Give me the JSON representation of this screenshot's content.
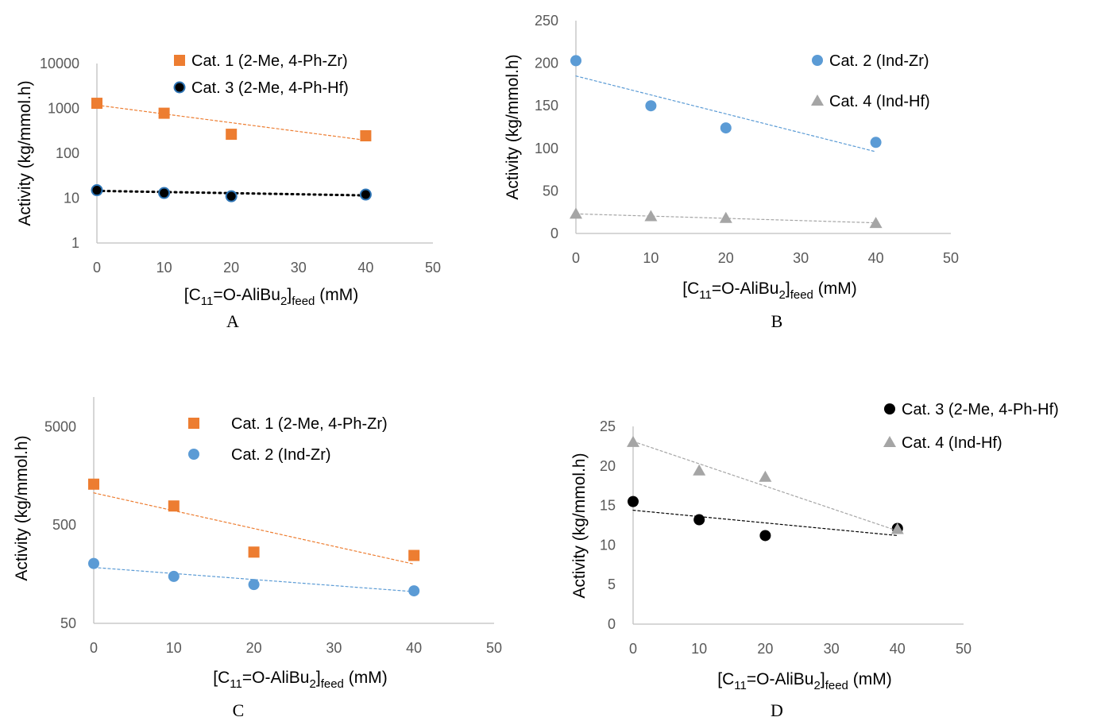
{
  "chart_data": [
    {
      "type": "scatter",
      "panel_label": "A",
      "xlabel": {
        "main": "[C",
        "sub1": "11",
        "mid": "=O-AliBu",
        "sub2": "2",
        "end": "]",
        "sub3": "feed",
        "unit": " (mM)"
      },
      "ylabel": "Activity (kg/mmol.h)",
      "yscale": "log",
      "xlim": [
        0,
        50
      ],
      "ylim": [
        1,
        10000
      ],
      "xticks": [
        0,
        10,
        20,
        30,
        40,
        50
      ],
      "yticks": [
        1,
        10,
        100,
        1000,
        10000
      ],
      "grid": false,
      "legend": "top-right",
      "series": [
        {
          "name": "Cat. 1 (2-Me, 4-Ph-Zr)",
          "marker": "square",
          "color": "#ed7d31",
          "trendline": "dashed",
          "x": [
            0,
            10,
            20,
            40
          ],
          "y": [
            1300,
            780,
            265,
            245
          ],
          "trend": [
            1180,
            195
          ]
        },
        {
          "name": "Cat. 3 (2-Me, 4-Ph-Hf)",
          "marker": "circle-outlined",
          "color": "#000000",
          "outline": "#2e75b6",
          "trendline": "dotted",
          "x": [
            0,
            10,
            20,
            40
          ],
          "y": [
            15,
            13,
            11,
            12
          ],
          "trend": [
            14.5,
            11.5
          ]
        }
      ]
    },
    {
      "type": "scatter",
      "panel_label": "B",
      "xlabel": {
        "main": "[C",
        "sub1": "11",
        "mid": "=O-AliBu",
        "sub2": "2",
        "end": "]",
        "sub3": "feed",
        "unit": " (mM)"
      },
      "ylabel": "Activity (kg/mmol.h)",
      "yscale": "linear",
      "xlim": [
        0,
        50
      ],
      "ylim": [
        0,
        250
      ],
      "xticks": [
        0,
        10,
        20,
        30,
        40,
        50
      ],
      "yticks": [
        0,
        50,
        100,
        150,
        200,
        250
      ],
      "grid": false,
      "legend": "top-right",
      "series": [
        {
          "name": "Cat. 2 (Ind-Zr)",
          "marker": "circle",
          "color": "#5b9bd5",
          "trendline": "dashed",
          "x": [
            0,
            10,
            20,
            40
          ],
          "y": [
            203,
            150,
            124,
            107
          ],
          "trend": [
            185,
            96
          ]
        },
        {
          "name": "Cat. 4 (Ind-Hf)",
          "marker": "triangle",
          "color": "#a5a5a5",
          "trendline": "dashed",
          "x": [
            0,
            10,
            20,
            40
          ],
          "y": [
            23,
            20,
            18,
            12
          ],
          "trend": [
            23,
            12.5
          ]
        }
      ]
    },
    {
      "type": "scatter",
      "panel_label": "C",
      "xlabel": {
        "main": "[C",
        "sub1": "11",
        "mid": "=O-AliBu",
        "sub2": "2",
        "end": "]",
        "sub3": "feed",
        "unit": " (mM)"
      },
      "ylabel": "Activity (kg/mmol.h)",
      "yscale": "log",
      "xlim": [
        0,
        50
      ],
      "ylim": [
        50,
        10000
      ],
      "xticks": [
        0,
        10,
        20,
        30,
        40,
        50
      ],
      "yticks": [
        50,
        500,
        5000
      ],
      "grid": false,
      "legend": "top-right",
      "series": [
        {
          "name": "Cat. 1 (2-Me, 4-Ph-Zr)",
          "marker": "square",
          "color": "#ed7d31",
          "trendline": "dashed",
          "x": [
            0,
            10,
            20,
            40
          ],
          "y": [
            1300,
            780,
            265,
            245
          ],
          "trend": [
            1060,
            200
          ]
        },
        {
          "name": "Cat. 2 (Ind-Zr)",
          "marker": "circle",
          "color": "#5b9bd5",
          "trendline": "dashed",
          "x": [
            0,
            10,
            20,
            40
          ],
          "y": [
            203,
            150,
            124,
            107
          ],
          "trend": [
            185,
            105
          ]
        }
      ]
    },
    {
      "type": "scatter",
      "panel_label": "D",
      "xlabel": {
        "main": "[C",
        "sub1": "11",
        "mid": "=O-AliBu",
        "sub2": "2",
        "end": "]",
        "sub3": "feed",
        "unit": " (mM)"
      },
      "ylabel": "Activity (kg/mmol.h)",
      "yscale": "linear",
      "xlim": [
        0,
        50
      ],
      "ylim": [
        0,
        25
      ],
      "xticks": [
        0,
        10,
        20,
        30,
        40,
        50
      ],
      "yticks": [
        0,
        5,
        10,
        15,
        20,
        25
      ],
      "grid": false,
      "legend": "top-right",
      "series": [
        {
          "name": "Cat. 3 (2-Me, 4-Ph-Hf)",
          "marker": "circle",
          "color": "#000000",
          "trendline": "dashed",
          "x": [
            0,
            10,
            20,
            40
          ],
          "y": [
            15.5,
            13.2,
            11.2,
            12.1
          ],
          "trend": [
            14.4,
            11.2
          ]
        },
        {
          "name": "Cat. 4 (Ind-Hf)",
          "marker": "triangle",
          "color": "#a5a5a5",
          "trendline": "dashed",
          "x": [
            0,
            10,
            20,
            40
          ],
          "y": [
            23,
            19.4,
            18.6,
            12
          ],
          "trend": [
            23.1,
            11.8
          ]
        }
      ]
    }
  ]
}
